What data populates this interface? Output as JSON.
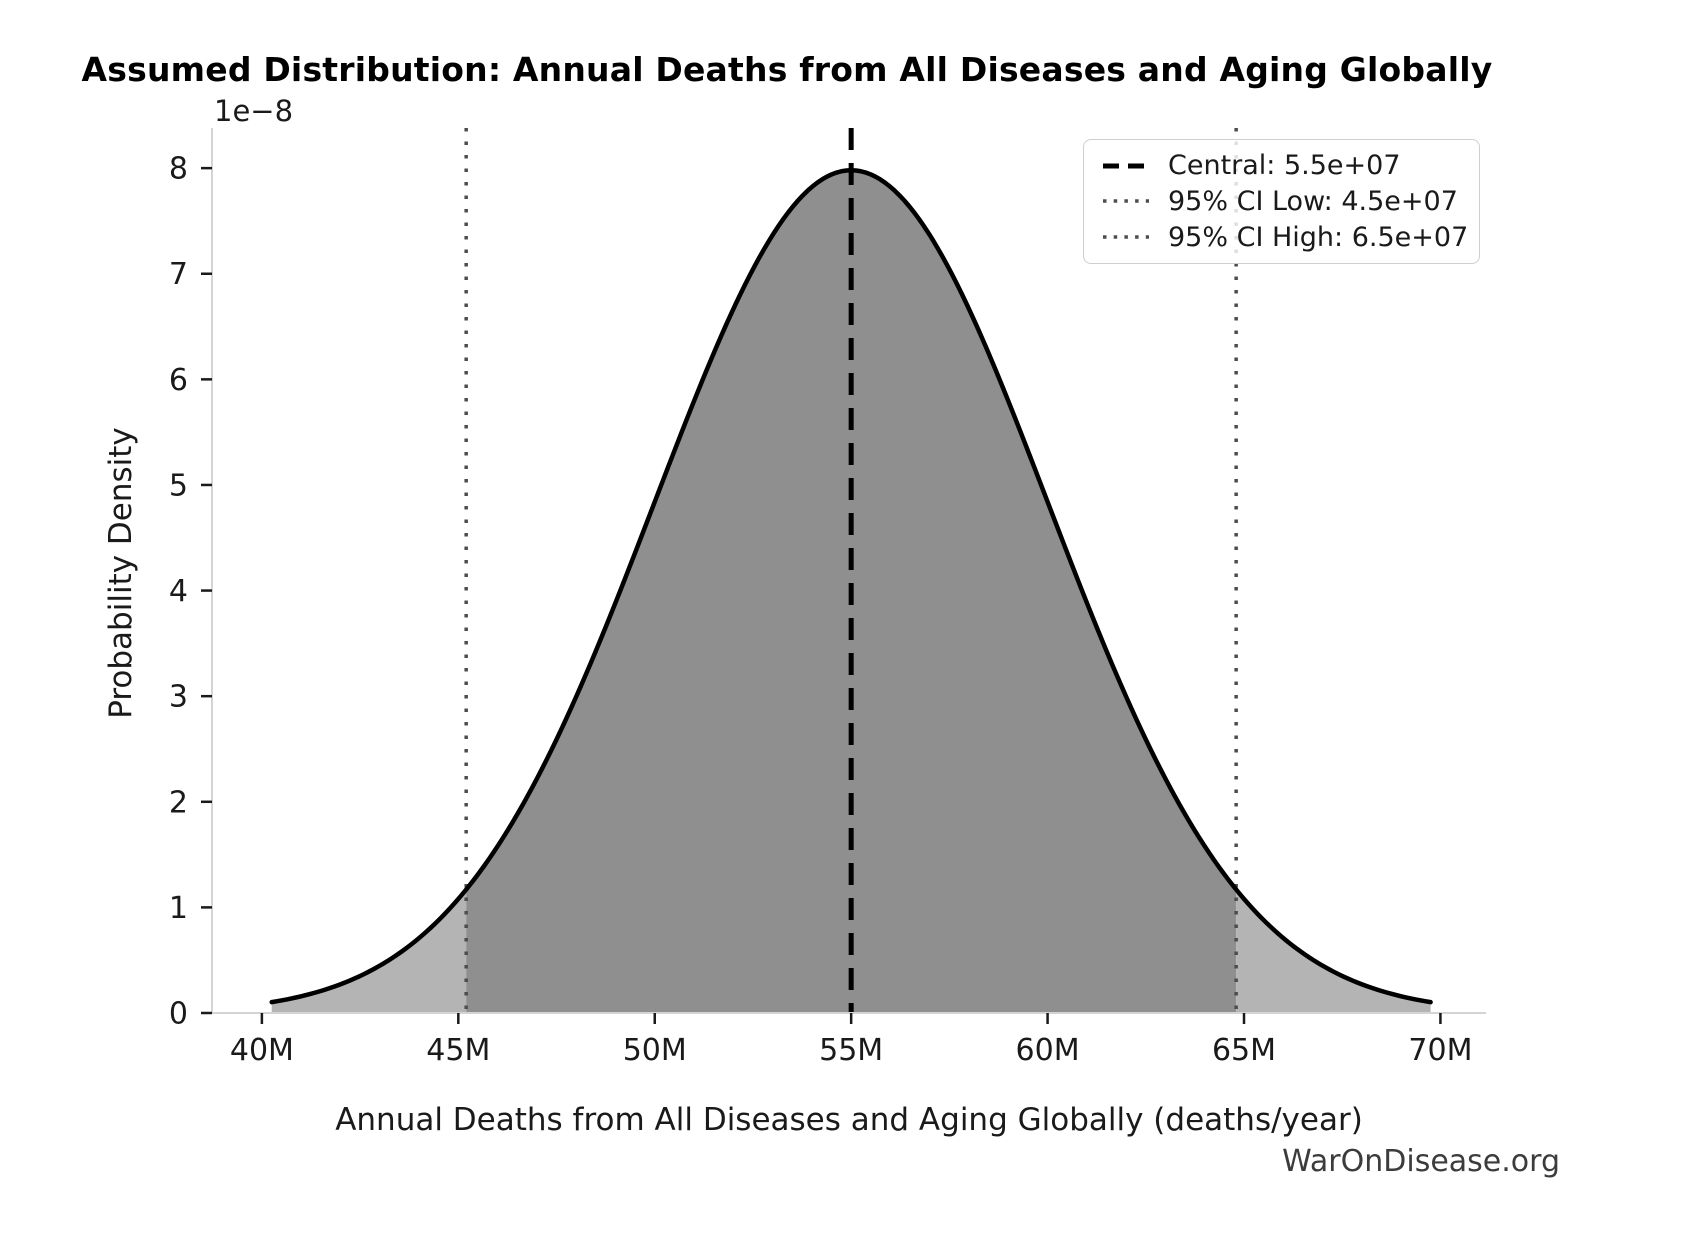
{
  "title": "Assumed Distribution: Annual Deaths from All Diseases and Aging Globally",
  "watermark": "WarOnDisease.org",
  "axes": {
    "xlabel": "Annual Deaths from All Diseases and Aging Globally (deaths/year)",
    "ylabel": "Probability Density",
    "y_offset_text": "1e−8"
  },
  "legend": {
    "position": "upper right",
    "entries": [
      {
        "label": "Central: 5.5e+07",
        "line_style": "dashed",
        "color": "#000000"
      },
      {
        "label": "95% CI Low: 4.5e+07",
        "line_style": "dotted",
        "color": "#4d4d4d"
      },
      {
        "label": "95% CI High: 6.5e+07",
        "line_style": "dotted",
        "color": "#4d4d4d"
      }
    ]
  },
  "chart_data": {
    "type": "area",
    "title": "Assumed Distribution: Annual Deaths from All Diseases and Aging Globally",
    "xlabel": "Annual Deaths from All Diseases and Aging Globally (deaths/year)",
    "ylabel": "Probability Density",
    "distribution": "normal",
    "mean": 55000000,
    "sd": 5000000,
    "peak_density": 7.98e-08,
    "central": 55000000,
    "ci_low": 45000000,
    "ci_high": 65000000,
    "vlines": {
      "central": 55000000,
      "ci_low": 45200000,
      "ci_high": 64800000
    },
    "curve_range": [
      40250000,
      69750000
    ],
    "xlim": [
      38730000,
      71160000
    ],
    "ylim": [
      0,
      8.38e-08
    ],
    "grid": false,
    "legend_position": "upper right",
    "y_scale_factor": "1e−8",
    "x_ticks": [
      {
        "value": 40000000,
        "label": "40M"
      },
      {
        "value": 45000000,
        "label": "45M"
      },
      {
        "value": 50000000,
        "label": "50M"
      },
      {
        "value": 55000000,
        "label": "55M"
      },
      {
        "value": 60000000,
        "label": "60M"
      },
      {
        "value": 65000000,
        "label": "65M"
      },
      {
        "value": 70000000,
        "label": "70M"
      }
    ],
    "y_ticks": [
      {
        "value_1e8": 0,
        "label": "0"
      },
      {
        "value_1e8": 1,
        "label": "1"
      },
      {
        "value_1e8": 2,
        "label": "2"
      },
      {
        "value_1e8": 3,
        "label": "3"
      },
      {
        "value_1e8": 4,
        "label": "4"
      },
      {
        "value_1e8": 5,
        "label": "5"
      },
      {
        "value_1e8": 6,
        "label": "6"
      },
      {
        "value_1e8": 7,
        "label": "7"
      },
      {
        "value_1e8": 8,
        "label": "8"
      }
    ],
    "colors": {
      "curve": "#000000",
      "fill_inside_ci": "#8f8f8f",
      "fill_outside_ci": "#b4b4b4",
      "vline_central": "#000000",
      "vline_ci": "#4d4d4d",
      "spine": "#d4d4d4",
      "tick": "#1a1a1a",
      "text": "#1a1a1a"
    }
  }
}
